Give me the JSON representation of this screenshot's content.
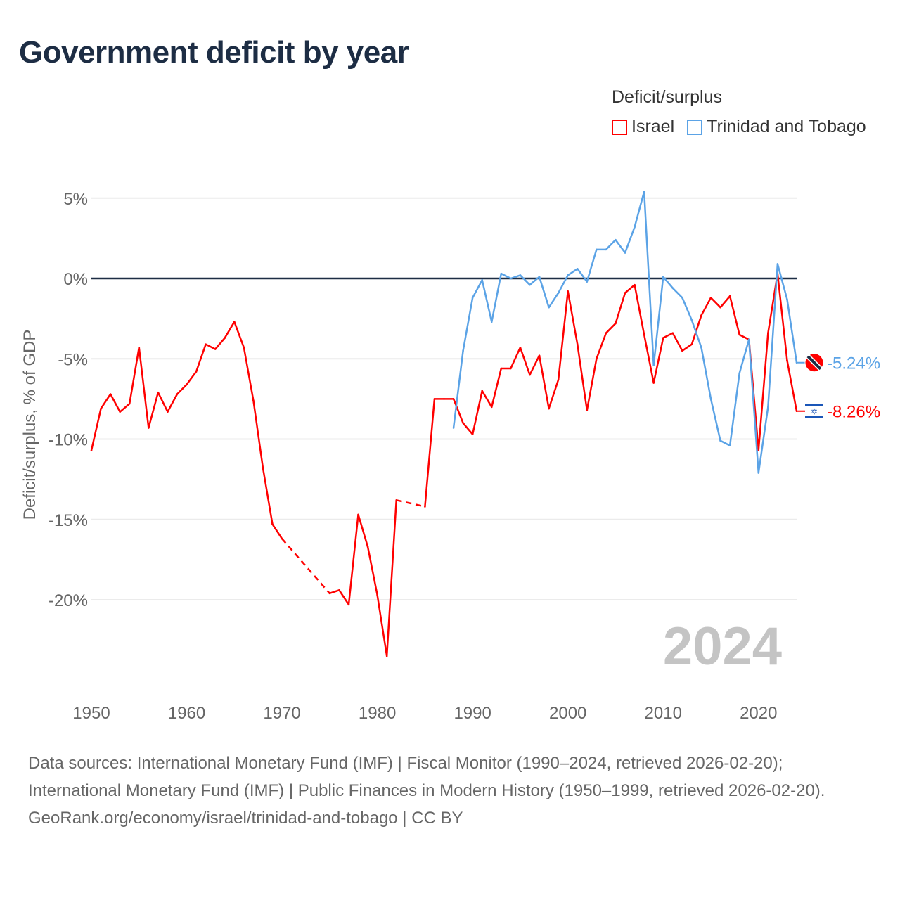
{
  "title": "Government deficit by year",
  "legend": {
    "title": "Deficit/surplus",
    "items": [
      {
        "label": "Israel",
        "color": "#ff0000"
      },
      {
        "label": "Trinidad and Tobago",
        "color": "#5ba3e6"
      }
    ]
  },
  "watermark_year": "2024",
  "footer": {
    "sources": "Data sources: International Monetary Fund (IMF) | Fiscal Monitor (1990–2024, retrieved 2026-02-20); International Monetary Fund (IMF) | Public Finances in Modern History (1950–1999, retrieved 2026-02-20).",
    "credit": "GeoRank.org/economy/israel/trinidad-and-tobago | CC BY"
  },
  "chart_data": {
    "type": "line",
    "title": "Government deficit by year",
    "xlabel": "",
    "ylabel": "Deficit/surplus, % of GDP",
    "xlim": [
      1950,
      2024
    ],
    "ylim": [
      -25,
      5.5
    ],
    "x_ticks": [
      "1950",
      "1960",
      "1970",
      "1980",
      "1990",
      "2000",
      "2010",
      "2020"
    ],
    "x_tick_values": [
      1950,
      1960,
      1970,
      1980,
      1990,
      2000,
      2010,
      2020
    ],
    "y_ticks": [
      "5%",
      "0%",
      "-5%",
      "-10%",
      "-15%",
      "-20%"
    ],
    "y_tick_values": [
      5,
      0,
      -5,
      -10,
      -15,
      -20
    ],
    "grid": true,
    "legend_position": "top-right",
    "series": [
      {
        "name": "Israel",
        "color": "#ff0000",
        "end_label": "-8.26%",
        "start_year": 1950,
        "values": [
          -10.7,
          -8.1,
          -7.2,
          -8.3,
          -7.8,
          -4.3,
          -9.3,
          -7.1,
          -8.3,
          -7.2,
          -6.6,
          -5.8,
          -4.1,
          -4.4,
          -3.7,
          -2.7,
          -4.3,
          -7.6,
          -11.8,
          -15.3,
          -16.2,
          null,
          null,
          null,
          null,
          -19.6,
          -19.4,
          -20.3,
          -14.7,
          -16.7,
          -19.7,
          -23.5,
          -13.8,
          null,
          null,
          -14.2,
          -7.5,
          -7.5,
          -7.5,
          -9.0,
          -9.7,
          -7.0,
          -8.0,
          -5.6,
          -5.6,
          -4.3,
          -6.0,
          -4.8,
          -8.1,
          -6.3,
          -0.8,
          -4.1,
          -8.2,
          -5.0,
          -3.4,
          -2.8,
          -0.9,
          -0.4,
          -3.5,
          -6.5,
          -3.7,
          -3.4,
          -4.5,
          -4.1,
          -2.3,
          -1.2,
          -1.8,
          -1.1,
          -3.5,
          -3.8,
          -10.7,
          -3.4,
          0.3,
          -5.1,
          -8.26
        ]
      },
      {
        "name": "Trinidad and Tobago",
        "color": "#5ba3e6",
        "end_label": "-5.24%",
        "start_year": 1988,
        "values": [
          -9.3,
          -4.5,
          -1.2,
          -0.1,
          -2.7,
          0.3,
          0.0,
          0.2,
          -0.4,
          0.1,
          -1.8,
          -0.9,
          0.2,
          0.6,
          -0.2,
          1.8,
          1.8,
          2.4,
          1.6,
          3.2,
          5.4,
          -5.4,
          0.1,
          -0.6,
          -1.2,
          -2.6,
          -4.3,
          -7.5,
          -10.1,
          -10.4,
          -5.9,
          -3.8,
          -12.1,
          -8.0,
          0.9,
          -1.3,
          -5.24
        ]
      }
    ]
  }
}
